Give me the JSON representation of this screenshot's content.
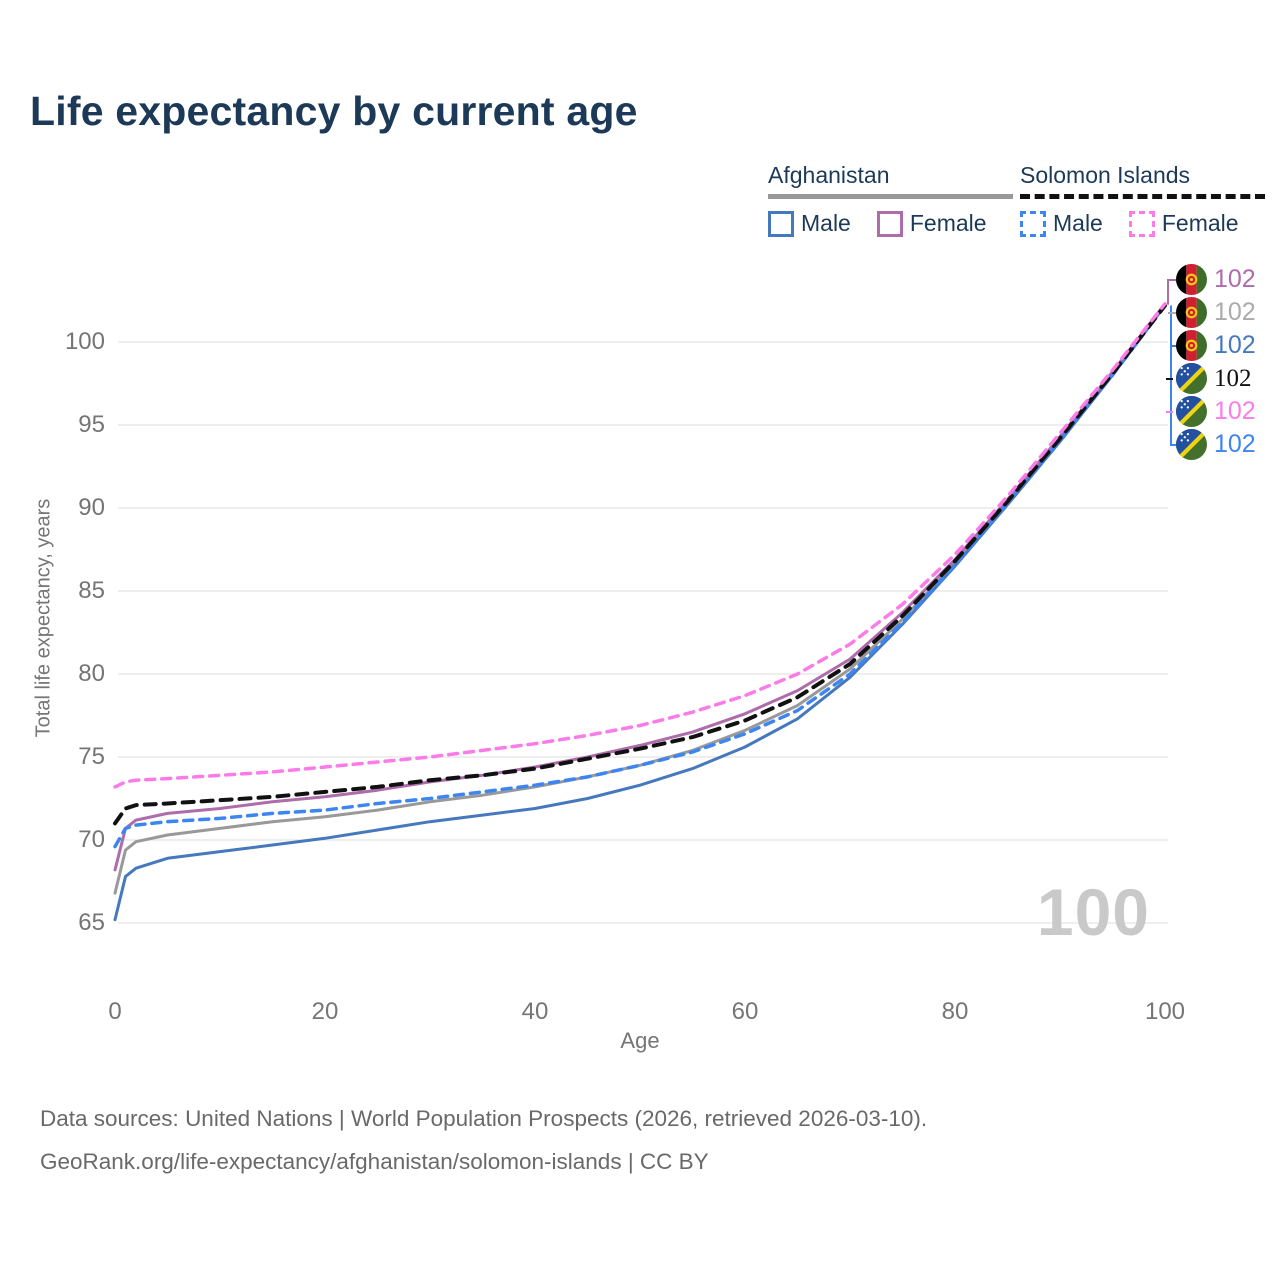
{
  "title": "Life expectancy by current age",
  "legend": {
    "groups": [
      {
        "label": "Afghanistan",
        "underline": "solid",
        "underline_color": "#999999",
        "items": [
          {
            "label": "Male",
            "color": "#4678bd",
            "dashed": false
          },
          {
            "label": "Female",
            "color": "#ae6cab",
            "dashed": false
          }
        ]
      },
      {
        "label": "Solomon Islands",
        "underline": "dashed",
        "underline_color": "#111111",
        "items": [
          {
            "label": "Male",
            "color": "#3d85f0",
            "dashed": true
          },
          {
            "label": "Female",
            "color": "#fb7ce8",
            "dashed": true
          }
        ]
      }
    ]
  },
  "watermark": "100",
  "footer": {
    "line1": "Data sources: United Nations | World Population Prospects (2026, retrieved 2026-03-10).",
    "line2": "GeoRank.org/life-expectancy/afghanistan/solomon-islands | CC BY"
  },
  "chart_data": {
    "type": "line",
    "title": "Life expectancy by current age",
    "xlabel": "Age",
    "ylabel": "Total life expectancy, years",
    "xlim": [
      0,
      100
    ],
    "ylim": [
      63,
      104
    ],
    "xticks": [
      0,
      20,
      40,
      60,
      80,
      100
    ],
    "yticks": [
      65,
      70,
      75,
      80,
      85,
      90,
      95,
      100
    ],
    "grid": "horizontal",
    "legend_position": "top-right",
    "x": [
      0,
      1,
      2,
      5,
      10,
      15,
      20,
      25,
      30,
      35,
      40,
      45,
      50,
      55,
      60,
      65,
      70,
      75,
      80,
      85,
      90,
      95,
      100
    ],
    "series": [
      {
        "id": "af_male",
        "country": "Afghanistan",
        "sex": "male",
        "name": "Afghanistan Male",
        "color": "#4678bd",
        "dashed": false,
        "values": [
          65.2,
          67.8,
          68.3,
          68.9,
          69.3,
          69.7,
          70.1,
          70.6,
          71.1,
          71.5,
          71.9,
          72.5,
          73.3,
          74.3,
          75.6,
          77.3,
          79.8,
          83.0,
          86.5,
          90.2,
          94.0,
          98.0,
          102.2
        ],
        "end_label": "102"
      },
      {
        "id": "af_both",
        "country": "Afghanistan",
        "sex": "both",
        "name": "Afghanistan",
        "color": "#999999",
        "dashed": false,
        "values": [
          66.8,
          69.4,
          69.9,
          70.3,
          70.7,
          71.1,
          71.4,
          71.8,
          72.3,
          72.7,
          73.2,
          73.8,
          74.5,
          75.4,
          76.6,
          78.1,
          80.3,
          83.3,
          86.7,
          90.4,
          94.2,
          98.1,
          102.2
        ],
        "end_label": "102"
      },
      {
        "id": "af_female",
        "country": "Afghanistan",
        "sex": "female",
        "name": "Afghanistan Female",
        "color": "#ae6cab",
        "dashed": false,
        "values": [
          68.2,
          70.7,
          71.2,
          71.6,
          71.9,
          72.3,
          72.6,
          73.0,
          73.5,
          73.9,
          74.4,
          75.0,
          75.7,
          76.5,
          77.6,
          79.0,
          80.9,
          83.7,
          86.9,
          90.5,
          94.3,
          98.2,
          102.3
        ],
        "end_label": "102"
      },
      {
        "id": "si_male",
        "country": "Solomon Islands",
        "sex": "male",
        "name": "Solomon Islands Male",
        "color": "#3d85f0",
        "dashed": true,
        "values": [
          69.6,
          70.7,
          70.9,
          71.1,
          71.3,
          71.6,
          71.8,
          72.2,
          72.5,
          72.9,
          73.3,
          73.8,
          74.5,
          75.3,
          76.4,
          77.8,
          80.0,
          83.1,
          86.6,
          90.3,
          94.1,
          98.0,
          102.2
        ],
        "end_label": "102"
      },
      {
        "id": "si_both",
        "country": "Solomon Islands",
        "sex": "both",
        "name": "Solomon Islands",
        "color": "#111111",
        "dashed": true,
        "values": [
          71.0,
          71.9,
          72.1,
          72.2,
          72.4,
          72.6,
          72.9,
          73.2,
          73.6,
          73.9,
          74.3,
          74.9,
          75.5,
          76.2,
          77.2,
          78.6,
          80.6,
          83.5,
          86.8,
          90.4,
          94.2,
          98.1,
          102.2
        ],
        "end_label": "102"
      },
      {
        "id": "si_female",
        "country": "Solomon Islands",
        "sex": "female",
        "name": "Solomon Islands Female",
        "color": "#fb7ce8",
        "dashed": true,
        "values": [
          73.2,
          73.5,
          73.6,
          73.7,
          73.9,
          74.1,
          74.4,
          74.7,
          75.0,
          75.4,
          75.8,
          76.3,
          76.9,
          77.7,
          78.7,
          80.0,
          81.8,
          84.2,
          87.2,
          90.7,
          94.5,
          98.3,
          102.3
        ],
        "end_label": "102"
      }
    ],
    "label_rows": [
      {
        "series": "af_female",
        "flag": "afghanistan",
        "label_color": "#ae6cab",
        "serif": false
      },
      {
        "series": "af_both",
        "flag": "afghanistan",
        "label_color": "#ababab",
        "serif": false
      },
      {
        "series": "af_male",
        "flag": "afghanistan",
        "label_color": "#4678bd",
        "serif": false
      },
      {
        "series": "si_both",
        "flag": "solomon-islands",
        "label_color": "#111111",
        "serif": true
      },
      {
        "series": "si_female",
        "flag": "solomon-islands",
        "label_color": "#fb7ce8",
        "serif": false
      },
      {
        "series": "si_male",
        "flag": "solomon-islands",
        "label_color": "#3d85f0",
        "serif": false
      }
    ]
  }
}
